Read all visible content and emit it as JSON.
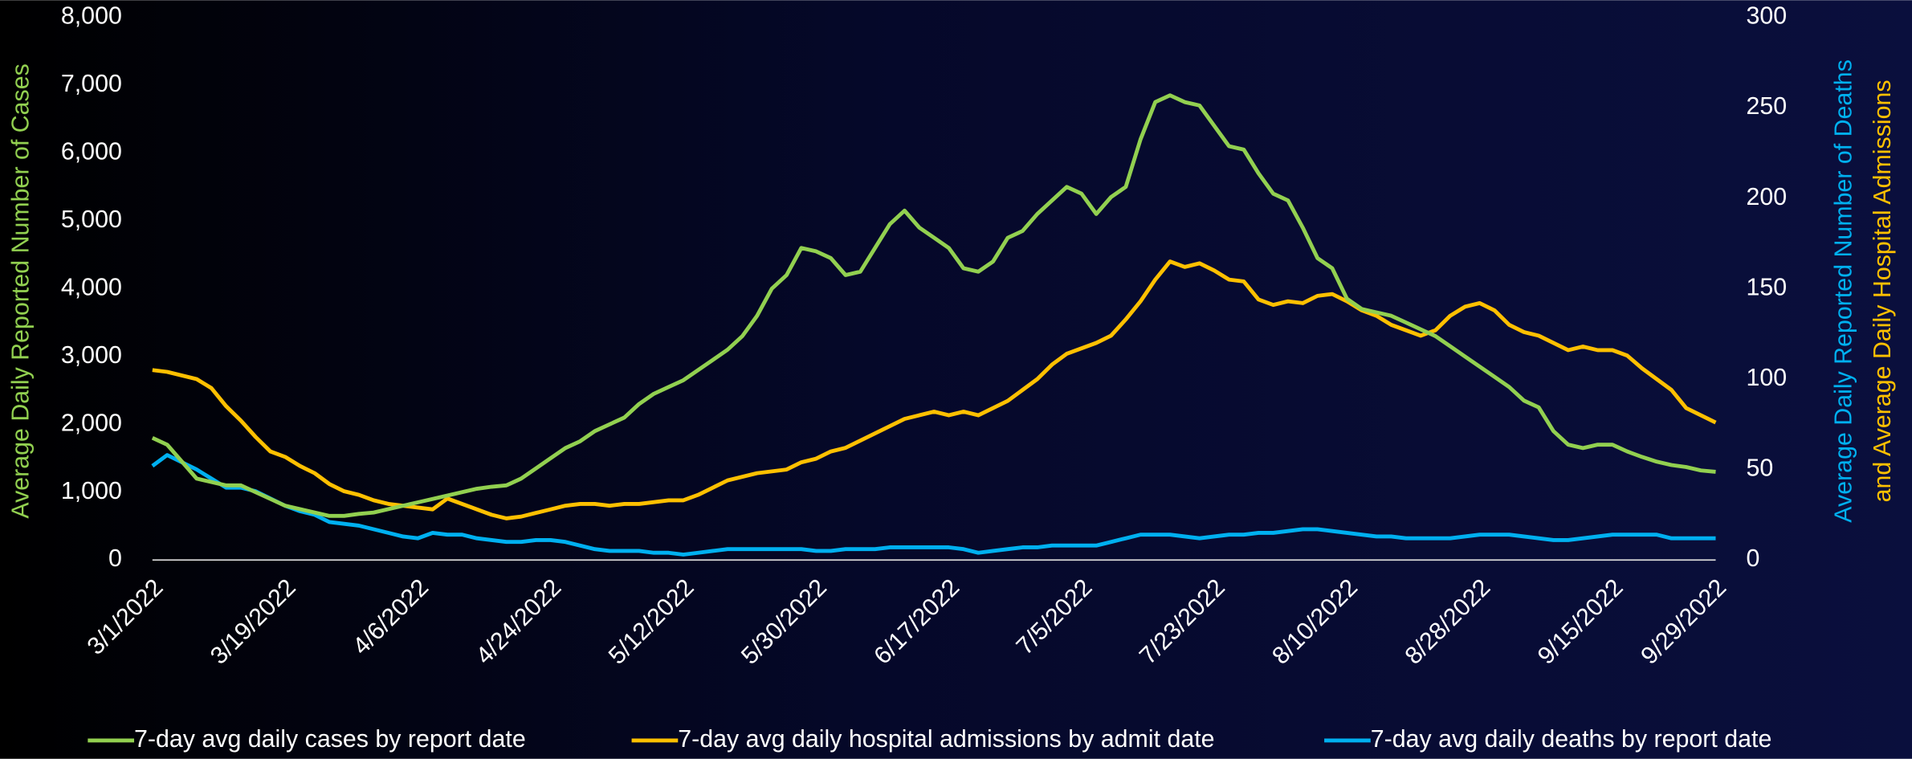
{
  "chart_data": {
    "type": "line",
    "y_label": "Average Daily Reported Number of Cases",
    "y2_label": [
      "Average Daily Reported Number of Deaths",
      "and Average Daily Hospital Admissions"
    ],
    "y2_label_colors": [
      "#00b0f0",
      "#ffc000"
    ],
    "y_label_color": "#92d050",
    "categories": [
      "3/1/2022",
      null,
      null,
      null,
      null,
      null,
      null,
      null,
      null,
      "3/19/2022",
      null,
      null,
      null,
      null,
      null,
      null,
      null,
      null,
      "4/6/2022",
      null,
      null,
      null,
      null,
      null,
      null,
      null,
      null,
      "4/24/2022",
      null,
      null,
      null,
      null,
      null,
      null,
      null,
      null,
      "5/12/2022",
      null,
      null,
      null,
      null,
      null,
      null,
      null,
      null,
      "5/30/2022",
      null,
      null,
      null,
      null,
      null,
      null,
      null,
      null,
      "6/17/2022",
      null,
      null,
      null,
      null,
      null,
      null,
      null,
      null,
      "7/5/2022",
      null,
      null,
      null,
      null,
      null,
      null,
      null,
      null,
      "7/23/2022",
      null,
      null,
      null,
      null,
      null,
      null,
      null,
      null,
      "8/10/2022",
      null,
      null,
      null,
      null,
      null,
      null,
      null,
      null,
      "8/28/2022",
      null,
      null,
      null,
      null,
      null,
      null,
      null,
      null,
      "9/15/2022",
      null,
      null,
      null,
      null,
      null,
      null,
      "9/29/2022"
    ],
    "series": [
      {
        "name": "7-day avg daily cases by report date",
        "color": "#92d050",
        "axis": "y",
        "values": [
          1800,
          1700,
          1450,
          1200,
          1150,
          1100,
          1100,
          1000,
          900,
          800,
          750,
          700,
          650,
          650,
          680,
          700,
          750,
          800,
          850,
          900,
          950,
          1000,
          1050,
          1080,
          1100,
          1200,
          1350,
          1500,
          1650,
          1750,
          1900,
          2000,
          2100,
          2300,
          2450,
          2550,
          2650,
          2800,
          2950,
          3100,
          3300,
          3600,
          4000,
          4200,
          4600,
          4550,
          4450,
          4200,
          4250,
          4600,
          4950,
          5150,
          4900,
          4750,
          4600,
          4300,
          4250,
          4400,
          4750,
          4850,
          5100,
          5300,
          5500,
          5400,
          5100,
          5350,
          5500,
          6200,
          6750,
          6850,
          6750,
          6700,
          6400,
          6100,
          6050,
          5700,
          5400,
          5300,
          4900,
          4450,
          4300,
          3850,
          3700,
          3650,
          3600,
          3500,
          3400,
          3300,
          3150,
          3000,
          2850,
          2700,
          2550,
          2350,
          2250,
          1900,
          1700,
          1650,
          1700,
          1700,
          1600,
          1520,
          1450,
          1400,
          1370,
          1320,
          1300
        ]
      },
      {
        "name": "7-day avg daily hospital admissions by admit date",
        "color": "#ffc000",
        "axis": "y2",
        "values": [
          105,
          104,
          102,
          100,
          95,
          85,
          77,
          68,
          60,
          57,
          52,
          48,
          42,
          38,
          36,
          33,
          31,
          30,
          29,
          28,
          34,
          31,
          28,
          25,
          23,
          24,
          26,
          28,
          30,
          31,
          31,
          30,
          31,
          31,
          32,
          33,
          33,
          36,
          40,
          44,
          46,
          48,
          49,
          50,
          54,
          56,
          60,
          62,
          66,
          70,
          74,
          78,
          80,
          82,
          80,
          82,
          80,
          84,
          88,
          94,
          100,
          108,
          114,
          117,
          120,
          124,
          133,
          143,
          155,
          165,
          162,
          164,
          160,
          155,
          154,
          144,
          141,
          143,
          142,
          146,
          147,
          143,
          138,
          135,
          130,
          127,
          124,
          127,
          135,
          140,
          142,
          138,
          130,
          126,
          124,
          120,
          116,
          118,
          116,
          116,
          113,
          106,
          100,
          94,
          84,
          80,
          76
        ]
      },
      {
        "name": "7-day avg daily deaths by report date",
        "color": "#00b0f0",
        "axis": "y2",
        "values": [
          52,
          58,
          54,
          50,
          45,
          40,
          40,
          38,
          34,
          30,
          27,
          25,
          21,
          20,
          19,
          17,
          15,
          13,
          12,
          15,
          14,
          14,
          12,
          11,
          10,
          10,
          11,
          11,
          10,
          8,
          6,
          5,
          5,
          5,
          4,
          4,
          3,
          4,
          5,
          6,
          6,
          6,
          6,
          6,
          6,
          5,
          5,
          6,
          6,
          6,
          7,
          7,
          7,
          7,
          7,
          6,
          4,
          5,
          6,
          7,
          7,
          8,
          8,
          8,
          8,
          10,
          12,
          14,
          14,
          14,
          13,
          12,
          13,
          14,
          14,
          15,
          15,
          16,
          17,
          17,
          16,
          15,
          14,
          13,
          13,
          12,
          12,
          12,
          12,
          13,
          14,
          14,
          14,
          13,
          12,
          11,
          11,
          12,
          13,
          14,
          14,
          14,
          14,
          12,
          12,
          12,
          12
        ]
      }
    ],
    "ylim": [
      0,
      8000
    ],
    "yticks": [
      0,
      {
        "value": 1000,
        "label": "1,000"
      },
      {
        "value": 2000,
        "label": "2,000"
      },
      {
        "value": 3000,
        "label": "3,000"
      },
      {
        "value": 4000,
        "label": "4,000"
      },
      {
        "value": 5000,
        "label": "5,000"
      },
      {
        "value": 6000,
        "label": "6,000"
      },
      {
        "value": 7000,
        "label": "7,000"
      },
      {
        "value": 8000,
        "label": "8,000"
      }
    ],
    "y2lim": [
      0,
      300
    ],
    "y2ticks": [
      0,
      50,
      100,
      150,
      200,
      250,
      300
    ],
    "legend": "bottom"
  }
}
